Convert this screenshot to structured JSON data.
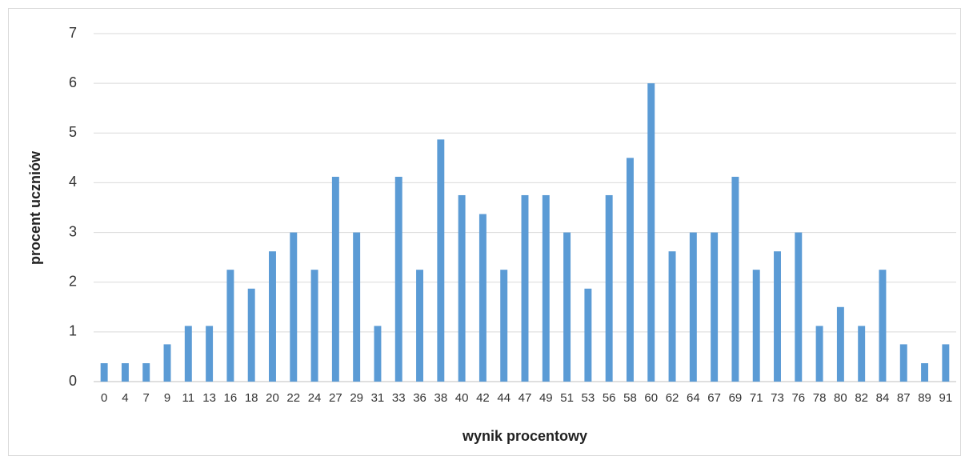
{
  "chart_data": {
    "type": "bar",
    "x_label": "wynik procentowy",
    "y_label": "procent uczniów",
    "categories": [
      "0",
      "4",
      "7",
      "9",
      "11",
      "13",
      "16",
      "18",
      "20",
      "22",
      "24",
      "27",
      "29",
      "31",
      "33",
      "36",
      "38",
      "40",
      "42",
      "44",
      "47",
      "49",
      "51",
      "53",
      "56",
      "58",
      "60",
      "62",
      "64",
      "67",
      "69",
      "71",
      "73",
      "76",
      "78",
      "80",
      "82",
      "84",
      "87",
      "89",
      "91"
    ],
    "values": [
      0.37,
      0.37,
      0.37,
      0.75,
      1.12,
      1.12,
      2.25,
      1.87,
      2.62,
      3.0,
      2.25,
      4.12,
      3.0,
      1.12,
      4.12,
      2.25,
      4.87,
      3.75,
      3.37,
      2.25,
      3.75,
      3.75,
      3.0,
      1.87,
      3.75,
      4.5,
      6.0,
      2.62,
      3.0,
      3.0,
      4.12,
      2.25,
      2.62,
      3.0,
      1.12,
      1.5,
      1.12,
      2.25,
      0.75,
      0.37,
      0.75
    ],
    "color": "#5b9bd5",
    "ylim": [
      0,
      7
    ],
    "yticks": [
      0,
      1,
      2,
      3,
      4,
      5,
      6,
      7
    ],
    "grid": true
  }
}
